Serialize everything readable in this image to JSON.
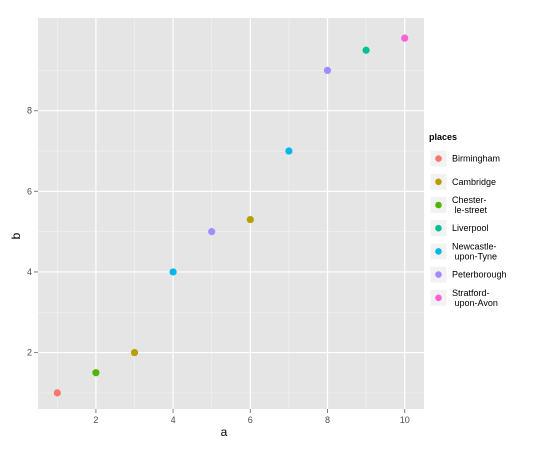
{
  "chart_data": {
    "type": "scatter",
    "xlabel": "a",
    "ylabel": "b",
    "xlim": [
      0.5,
      10.5
    ],
    "ylim": [
      0.6,
      10.3
    ],
    "x_ticks": [
      2,
      4,
      6,
      8,
      10
    ],
    "y_ticks": [
      2,
      4,
      6,
      8
    ],
    "x_tick_labels": [
      "2",
      "4",
      "6",
      "8",
      "10"
    ],
    "y_tick_labels": [
      "2",
      "4",
      "6",
      "8"
    ],
    "grid": true,
    "legend": {
      "title": "places",
      "position": "right"
    },
    "series": [
      {
        "name": "Birmingham",
        "label_lines": [
          "Birmingham"
        ],
        "color": "#F8766D",
        "points": [
          {
            "x": 1,
            "y": 1.0
          }
        ]
      },
      {
        "name": "Cambridge",
        "label_lines": [
          "Cambridge"
        ],
        "color": "#B79F00",
        "points": [
          {
            "x": 3,
            "y": 2.0
          },
          {
            "x": 6,
            "y": 5.3
          }
        ]
      },
      {
        "name": "Chester-le-street",
        "label_lines": [
          "Chester-",
          " le-street"
        ],
        "color": "#53B400",
        "points": [
          {
            "x": 2,
            "y": 1.5
          }
        ]
      },
      {
        "name": "Liverpool",
        "label_lines": [
          "Liverpool"
        ],
        "color": "#00C094",
        "points": [
          {
            "x": 9,
            "y": 9.5
          }
        ]
      },
      {
        "name": "Newcastle-upon-Tyne",
        "label_lines": [
          "Newcastle-",
          " upon-Tyne"
        ],
        "color": "#00B6EB",
        "points": [
          {
            "x": 4,
            "y": 4.0
          },
          {
            "x": 7,
            "y": 7.0
          }
        ]
      },
      {
        "name": "Peterborough",
        "label_lines": [
          "Peterborough"
        ],
        "color": "#A58AFF",
        "points": [
          {
            "x": 5,
            "y": 5.0
          },
          {
            "x": 8,
            "y": 9.0
          }
        ]
      },
      {
        "name": "Stratford-upon-Avon",
        "label_lines": [
          "Stratford-",
          " upon-Avon"
        ],
        "color": "#FB61D7",
        "points": [
          {
            "x": 10,
            "y": 9.8
          }
        ]
      }
    ]
  }
}
